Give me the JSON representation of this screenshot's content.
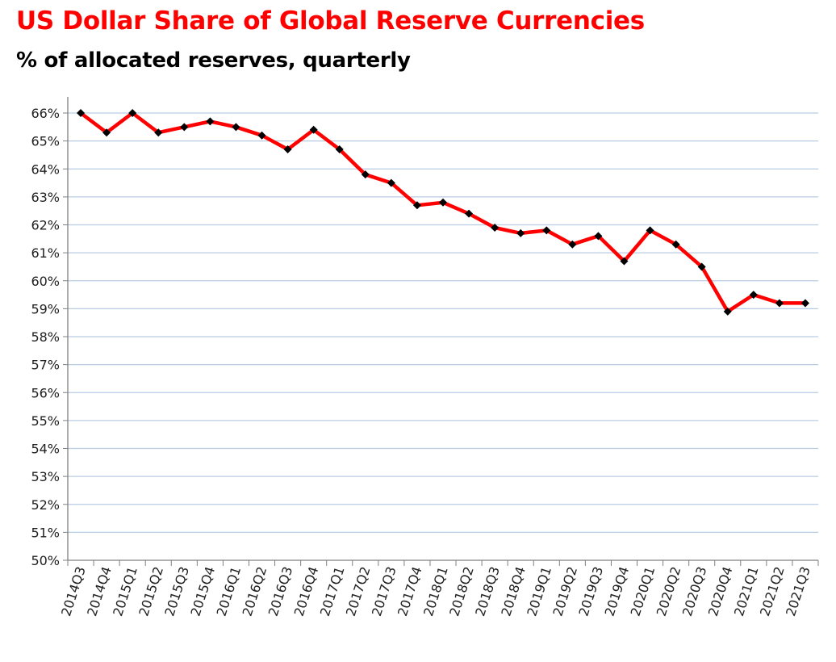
{
  "chart_data": {
    "type": "line",
    "title": "US Dollar Share of Global Reserve Currencies",
    "subtitle": "% of allocated reserves, quarterly",
    "xlabel": "",
    "ylabel": "",
    "ylim": [
      50,
      66
    ],
    "y_ticks": [
      "50%",
      "51%",
      "52%",
      "53%",
      "54%",
      "55%",
      "56%",
      "57%",
      "58%",
      "59%",
      "60%",
      "61%",
      "62%",
      "63%",
      "64%",
      "65%",
      "66%"
    ],
    "grid": true,
    "line_color": "#ff0000",
    "marker_color": "#000000",
    "grid_color": "#b8cce4",
    "categories": [
      "2014Q3",
      "2014Q4",
      "2015Q1",
      "2015Q2",
      "2015Q3",
      "2015Q4",
      "2016Q1",
      "2016Q2",
      "2016Q3",
      "2016Q4",
      "2017Q1",
      "2017Q2",
      "2017Q3",
      "2017Q4",
      "2018Q1",
      "2018Q2",
      "2018Q3",
      "2018Q4",
      "2019Q1",
      "2019Q2",
      "2019Q3",
      "2019Q4",
      "2020Q1",
      "2020Q2",
      "2020Q3",
      "2020Q4",
      "2021Q1",
      "2021Q2",
      "2021Q3"
    ],
    "values": [
      66.0,
      65.3,
      66.0,
      65.3,
      65.5,
      65.7,
      65.5,
      65.2,
      64.7,
      65.4,
      64.7,
      63.8,
      63.5,
      62.7,
      62.8,
      62.4,
      61.9,
      61.7,
      61.8,
      61.3,
      61.6,
      60.7,
      61.8,
      61.3,
      60.5,
      58.9,
      59.5,
      59.2,
      59.2
    ]
  }
}
